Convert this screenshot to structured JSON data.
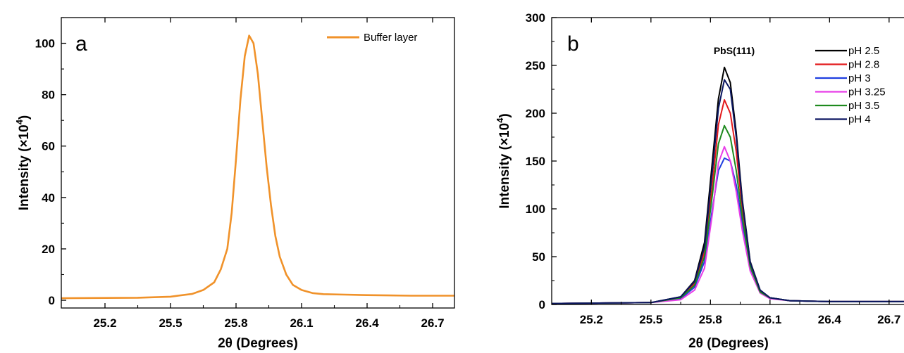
{
  "chart_data": [
    {
      "type": "line",
      "panel_label": "a",
      "xlabel": "2θ (Degrees)",
      "ylabel": "Intensity (×10",
      "ylabel_sup": "4",
      "ylabel_close": ")",
      "xlim": [
        25.0,
        26.8
      ],
      "ylim": [
        -3,
        110
      ],
      "xticks": [
        25.2,
        25.5,
        25.8,
        26.1,
        26.4,
        26.7
      ],
      "xtick_labels": [
        "25.2",
        "25.5",
        "25.8",
        "26.1",
        "26.4",
        "26.7"
      ],
      "yticks": [
        0,
        20,
        40,
        60,
        80,
        100
      ],
      "ytick_labels": [
        "0",
        "20",
        "40",
        "60",
        "80",
        "100"
      ],
      "legend_position": "top-right",
      "series": [
        {
          "name": "Buffer layer",
          "color": "#F0922A",
          "x": [
            25.0,
            25.35,
            25.5,
            25.6,
            25.65,
            25.7,
            25.73,
            25.76,
            25.78,
            25.8,
            25.82,
            25.84,
            25.86,
            25.88,
            25.9,
            25.92,
            25.94,
            25.96,
            25.98,
            26.0,
            26.03,
            26.06,
            26.1,
            26.15,
            26.2,
            26.3,
            26.4,
            26.5,
            26.6,
            26.7,
            26.8
          ],
          "y": [
            0.8,
            1.0,
            1.4,
            2.5,
            4.0,
            7.0,
            12.0,
            20.0,
            34.0,
            55.0,
            78.0,
            95.0,
            103.0,
            100.0,
            88.0,
            70.0,
            52.0,
            37.0,
            25.0,
            17.0,
            10.0,
            6.0,
            4.0,
            2.8,
            2.4,
            2.2,
            2.0,
            1.9,
            1.8,
            1.8,
            1.8
          ]
        }
      ]
    },
    {
      "type": "line",
      "panel_label": "b",
      "annotation": "PbS(111)",
      "xlabel": "2θ (Degrees)",
      "ylabel": "Intensity (×10",
      "ylabel_sup": "4",
      "ylabel_close": ")",
      "xlim": [
        25.0,
        26.8
      ],
      "ylim": [
        0,
        300
      ],
      "xticks": [
        25.2,
        25.5,
        25.8,
        26.1,
        26.4,
        26.7
      ],
      "xtick_labels": [
        "25.2",
        "25.5",
        "25.8",
        "26.1",
        "26.4",
        "26.7"
      ],
      "yticks": [
        0,
        50,
        100,
        150,
        200,
        250,
        300
      ],
      "ytick_labels": [
        "0",
        "50",
        "100",
        "150",
        "200",
        "250",
        "300"
      ],
      "legend_position": "top-right",
      "series": [
        {
          "name": "pH 2.5",
          "color": "#000000",
          "x": [
            25.0,
            25.5,
            25.65,
            25.72,
            25.77,
            25.81,
            25.84,
            25.87,
            25.9,
            25.93,
            25.96,
            26.0,
            26.05,
            26.1,
            26.2,
            26.4,
            26.6,
            26.8
          ],
          "y": [
            1,
            2,
            8,
            25,
            65,
            150,
            215,
            248,
            232,
            180,
            110,
            45,
            15,
            7,
            4,
            3,
            3,
            3
          ]
        },
        {
          "name": "pH 2.8",
          "color": "#E31A1C",
          "x": [
            25.0,
            25.5,
            25.65,
            25.72,
            25.77,
            25.81,
            25.84,
            25.87,
            25.9,
            25.93,
            25.96,
            26.0,
            26.05,
            26.1,
            26.2,
            26.4,
            26.6,
            26.8
          ],
          "y": [
            1,
            2,
            7,
            22,
            55,
            125,
            188,
            214,
            200,
            160,
            100,
            42,
            14,
            7,
            4,
            3,
            3,
            3
          ]
        },
        {
          "name": "pH 3",
          "color": "#1F3FE0",
          "x": [
            25.0,
            25.5,
            25.65,
            25.72,
            25.77,
            25.81,
            25.84,
            25.87,
            25.9,
            25.93,
            25.96,
            26.0,
            26.05,
            26.1,
            26.2,
            26.4,
            26.6,
            26.8
          ],
          "y": [
            1,
            2,
            6,
            18,
            45,
            100,
            140,
            153,
            150,
            125,
            85,
            38,
            13,
            7,
            4,
            3,
            3,
            3
          ]
        },
        {
          "name": "pH 3.25",
          "color": "#E83DE8",
          "x": [
            25.0,
            25.5,
            25.65,
            25.72,
            25.77,
            25.81,
            25.84,
            25.87,
            25.9,
            25.93,
            25.96,
            26.0,
            26.05,
            26.1,
            26.2,
            26.4,
            26.6,
            26.8
          ],
          "y": [
            1,
            2,
            5,
            15,
            38,
            95,
            148,
            165,
            150,
            118,
            78,
            35,
            12,
            6,
            4,
            3,
            3,
            3
          ]
        },
        {
          "name": "pH 3.5",
          "color": "#1E8A1E",
          "x": [
            25.0,
            25.5,
            25.65,
            25.72,
            25.77,
            25.81,
            25.84,
            25.87,
            25.9,
            25.93,
            25.96,
            26.0,
            26.05,
            26.1,
            26.2,
            26.4,
            26.6,
            26.8
          ],
          "y": [
            1,
            2,
            7,
            20,
            50,
            115,
            168,
            187,
            175,
            140,
            92,
            40,
            13,
            7,
            4,
            3,
            3,
            3
          ]
        },
        {
          "name": "pH 4",
          "color": "#0A1560",
          "x": [
            25.0,
            25.5,
            25.65,
            25.72,
            25.77,
            25.81,
            25.84,
            25.87,
            25.9,
            25.93,
            25.96,
            26.0,
            26.05,
            26.1,
            26.2,
            26.4,
            26.6,
            26.8
          ],
          "y": [
            1,
            2,
            8,
            24,
            60,
            140,
            205,
            235,
            225,
            175,
            108,
            44,
            15,
            7,
            4,
            3,
            3,
            3
          ]
        }
      ]
    }
  ]
}
